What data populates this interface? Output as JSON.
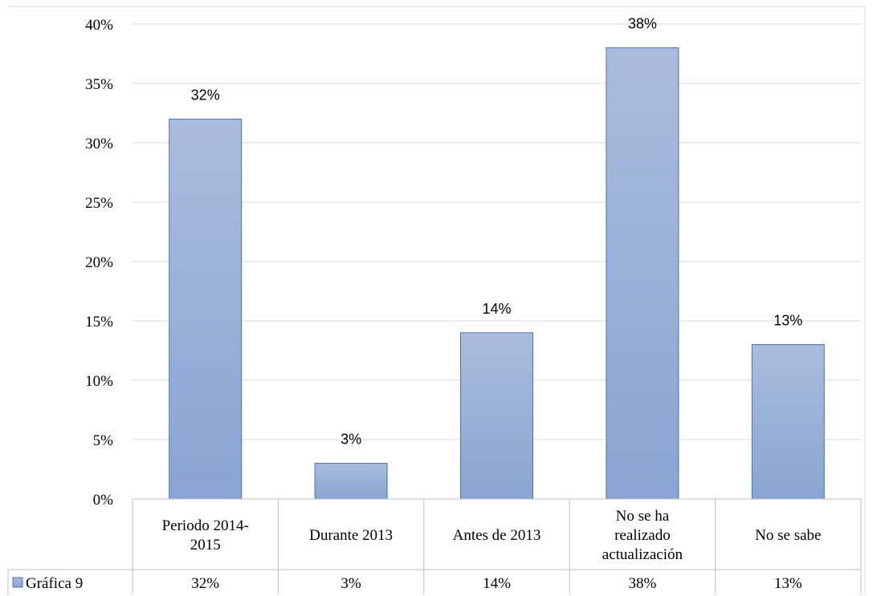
{
  "chart_data": {
    "type": "bar",
    "categories": [
      [
        "Periodo 2014-",
        "2015"
      ],
      [
        "Durante 2013"
      ],
      [
        "Antes de 2013"
      ],
      [
        "No se ha",
        "realizado",
        "actualización"
      ],
      [
        "No se sabe"
      ]
    ],
    "series": [
      {
        "name": "Gráfica 9",
        "values": [
          32,
          3,
          14,
          38,
          13
        ],
        "labels": [
          "32%",
          "3%",
          "14%",
          "38%",
          "13%"
        ],
        "color": "#9bb0d6"
      }
    ],
    "ylim": [
      0,
      40
    ],
    "ytick_values": [
      0,
      5,
      10,
      15,
      20,
      25,
      30,
      35,
      40
    ],
    "yticks": [
      "0%",
      "5%",
      "10%",
      "15%",
      "20%",
      "25%",
      "30%",
      "35%",
      "40%"
    ],
    "grid": true,
    "legend_position": "data-table",
    "colors": {
      "bar_fill_top": "#a9bcdc",
      "bar_fill_bottom": "#8aa5d2",
      "bar_stroke": "#4a72b6",
      "grid": "#d9d9d9",
      "axis": "#bfbfbf"
    }
  }
}
